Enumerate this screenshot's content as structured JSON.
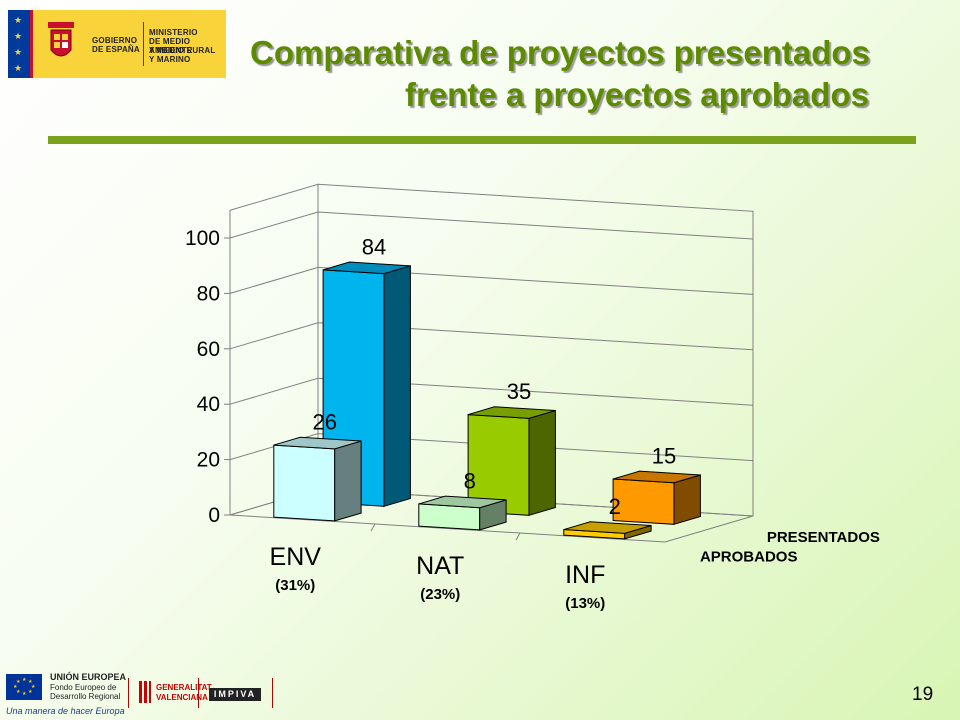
{
  "slide": {
    "title_line_1": "Comparativa de proyectos presentados",
    "title_line_2": "frente a proyectos aprobados",
    "page_number": "19"
  },
  "logo": {
    "org_1": "GOBIERNO",
    "org_2": "DE ESPAÑA",
    "ministry_1": "MINISTERIO",
    "ministry_2": "DE MEDIO AMBIENTE",
    "ministry_3": "Y MEDIO RURAL",
    "ministry_4": "Y MARINO"
  },
  "footer": {
    "eu_name": "UNIÓN EUROPEA",
    "eu_fund_1": "Fondo Europeo de",
    "eu_fund_2": "Desarrollo Regional",
    "eu_motto": "Una manera de hacer Europa",
    "gv_1": "GENERALITAT",
    "gv_2": "VALENCIANA",
    "impiva": "IMPIVA"
  },
  "colors": {
    "title": "#5d8b00",
    "title_rule": "#7aa21c",
    "presentados": [
      "#00b4ee",
      "#99cc00",
      "#ff9900"
    ],
    "aprobados": [
      "#ccffff",
      "#ccffcc",
      "#ffcc00"
    ]
  },
  "chart_data": {
    "type": "bar",
    "style": "3d-clustered-depth",
    "categories": [
      "ENV",
      "NAT",
      "INF"
    ],
    "category_notes": [
      "(31%)",
      "(23%)",
      "(13%)"
    ],
    "series": [
      {
        "name": "PRESENTADOS",
        "values": [
          84,
          35,
          15
        ]
      },
      {
        "name": "APROBADOS",
        "values": [
          26,
          8,
          2
        ]
      }
    ],
    "ylim": [
      0,
      100
    ],
    "yticks": [
      "0",
      "20",
      "40",
      "60",
      "80",
      "100"
    ],
    "grid": true,
    "legend": "series labels on right depth axis"
  }
}
